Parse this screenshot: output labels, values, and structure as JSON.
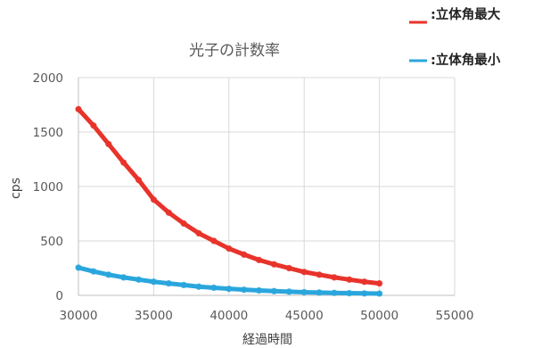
{
  "chart_data": {
    "type": "scatter",
    "title": "光子の計数率",
    "xlabel": "経過時間",
    "ylabel": "cps",
    "xlim": [
      30000,
      55000
    ],
    "ylim": [
      0,
      2000
    ],
    "xticks": [
      "30000",
      "35000",
      "40000",
      "45000",
      "50000",
      "55000"
    ],
    "yticks": [
      "0",
      "500",
      "1000",
      "1500",
      "2000"
    ],
    "grid": true,
    "legend_position": "top-right",
    "series": [
      {
        "name": ":立体角最大",
        "color": "#e8332b",
        "x": [
          30000,
          31000,
          32000,
          33000,
          34000,
          35000,
          36000,
          37000,
          38000,
          39000,
          40000,
          41000,
          42000,
          43000,
          44000,
          45000,
          46000,
          47000,
          48000,
          49000,
          50000
        ],
        "y": [
          1710,
          1560,
          1390,
          1220,
          1060,
          880,
          760,
          660,
          570,
          500,
          430,
          375,
          325,
          285,
          250,
          215,
          190,
          165,
          145,
          125,
          110
        ]
      },
      {
        "name": ":立体角最小",
        "color": "#2aa6dd",
        "x": [
          30000,
          31000,
          32000,
          33000,
          34000,
          35000,
          36000,
          37000,
          38000,
          39000,
          40000,
          41000,
          42000,
          43000,
          44000,
          45000,
          46000,
          47000,
          48000,
          49000,
          50000
        ],
        "y": [
          255,
          220,
          190,
          165,
          145,
          125,
          110,
          95,
          80,
          70,
          60,
          52,
          45,
          39,
          34,
          29,
          26,
          23,
          20,
          18,
          16
        ]
      }
    ]
  }
}
